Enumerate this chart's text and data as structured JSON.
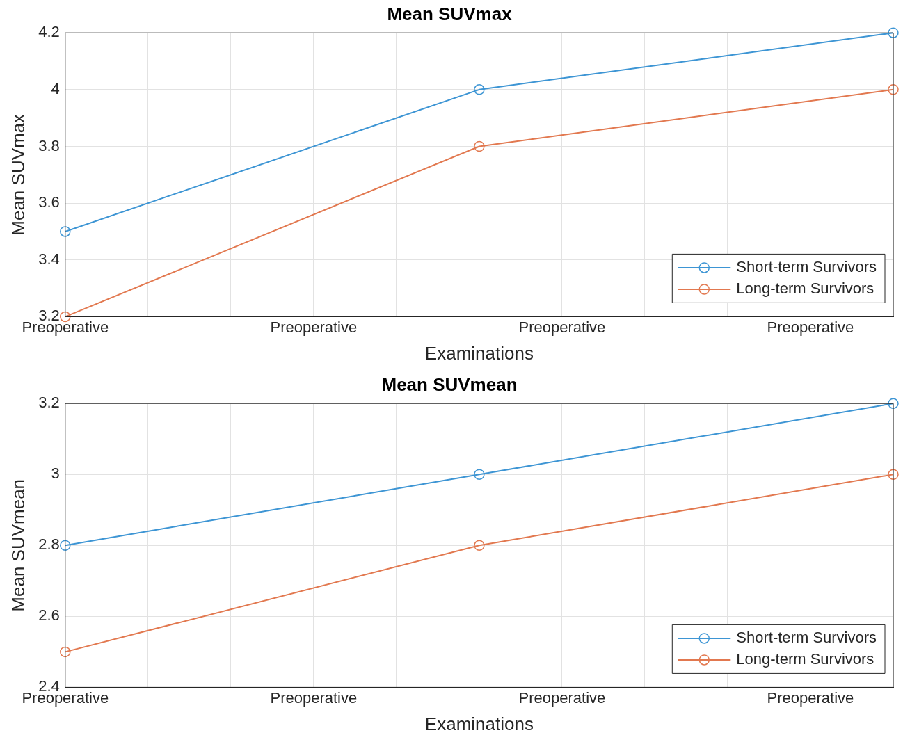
{
  "chart_data": [
    {
      "type": "line",
      "title": "Mean SUVmax",
      "xlabel": "Examinations",
      "ylabel": "Mean SUVmax",
      "categories": [
        "Preoperative",
        null,
        null,
        "Preoperative",
        null,
        null,
        "Preoperative",
        null,
        null,
        "Preoperative",
        null
      ],
      "series": [
        {
          "name": "Short-term Survivors",
          "color": "#3d95d4",
          "values": [
            3.5,
            null,
            null,
            null,
            null,
            4.0,
            null,
            null,
            null,
            null,
            4.2
          ]
        },
        {
          "name": "Long-term Survivors",
          "color": "#e2784f",
          "values": [
            3.2,
            null,
            null,
            null,
            null,
            3.8,
            null,
            null,
            null,
            null,
            4.0
          ]
        }
      ],
      "ylim": [
        3.2,
        4.2
      ],
      "yticks": [
        3.2,
        3.4,
        3.6,
        3.8,
        4,
        4.2
      ],
      "grid": true,
      "legend": "bottom right",
      "marker": "circle",
      "line_style": "solid"
    },
    {
      "type": "line",
      "title": "Mean SUVmean",
      "xlabel": "Examinations",
      "ylabel": "Mean SUVmean",
      "categories": [
        "Preoperative",
        null,
        null,
        "Preoperative",
        null,
        null,
        "Preoperative",
        null,
        null,
        "Preoperative",
        null
      ],
      "series": [
        {
          "name": "Short-term Survivors",
          "color": "#3d95d4",
          "values": [
            2.8,
            null,
            null,
            null,
            null,
            3.0,
            null,
            null,
            null,
            null,
            3.2
          ]
        },
        {
          "name": "Long-term Survivors",
          "color": "#e2784f",
          "values": [
            2.5,
            null,
            null,
            null,
            null,
            2.8,
            null,
            null,
            null,
            null,
            3.0
          ]
        }
      ],
      "ylim": [
        2.4,
        3.2
      ],
      "yticks": [
        2.4,
        2.6,
        2.8,
        3,
        3.2
      ],
      "grid": true,
      "legend": "bottom right",
      "marker": "circle",
      "line_style": "solid"
    }
  ]
}
